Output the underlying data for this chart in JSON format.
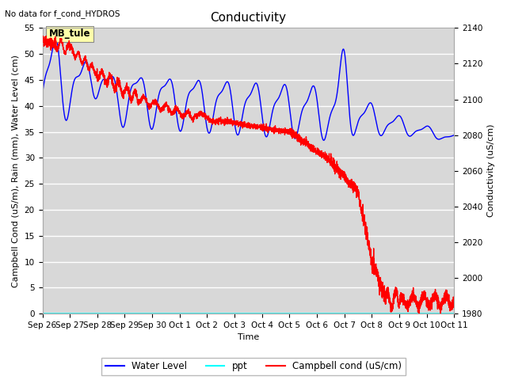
{
  "title": "Conductivity",
  "top_left_text": "No data for f_cond_HYDROS",
  "annotation_box": "MB_tule",
  "xlabel": "Time",
  "ylabel_left": "Campbell Cond (uS/m), Rain (mm), Water Level (cm)",
  "ylabel_right": "Conductivity (uS/cm)",
  "ylim_left": [
    0,
    55
  ],
  "ylim_right": [
    1980,
    2140
  ],
  "yticks_left": [
    0,
    5,
    10,
    15,
    20,
    25,
    30,
    35,
    40,
    45,
    50,
    55
  ],
  "yticks_right": [
    1980,
    2000,
    2020,
    2040,
    2060,
    2080,
    2100,
    2120,
    2140
  ],
  "xtick_labels": [
    "Sep 26",
    "Sep 27",
    "Sep 28",
    "Sep 29",
    "Sep 30",
    "Oct 1",
    "Oct 2",
    "Oct 3",
    "Oct 4",
    "Oct 5",
    "Oct 6",
    "Oct 7",
    "Oct 8",
    "Oct 9",
    "Oct 10",
    "Oct 11"
  ],
  "legend_entries": [
    "Water Level",
    "ppt",
    "Campbell cond (uS/cm)"
  ],
  "figsize": [
    6.4,
    4.8
  ],
  "dpi": 100,
  "plot_bg_color": "#d8d8d8",
  "grid_color": "white",
  "title_fontsize": 11,
  "label_fontsize": 8,
  "tick_fontsize": 7.5
}
